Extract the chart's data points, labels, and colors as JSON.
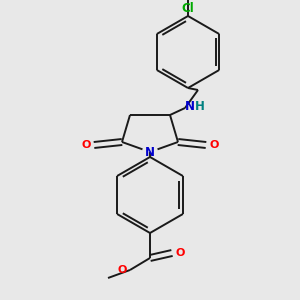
{
  "bg_color": "#e8e8e8",
  "bond_color": "#1a1a1a",
  "N_color": "#0000cc",
  "O_color": "#ff0000",
  "Cl_color": "#00aa00",
  "NH_color": "#008080",
  "lw": 1.4,
  "dbo": 0.018,
  "figsize": [
    3.0,
    3.0
  ],
  "dpi": 100,
  "xlim": [
    0,
    300
  ],
  "ylim": [
    0,
    300
  ]
}
